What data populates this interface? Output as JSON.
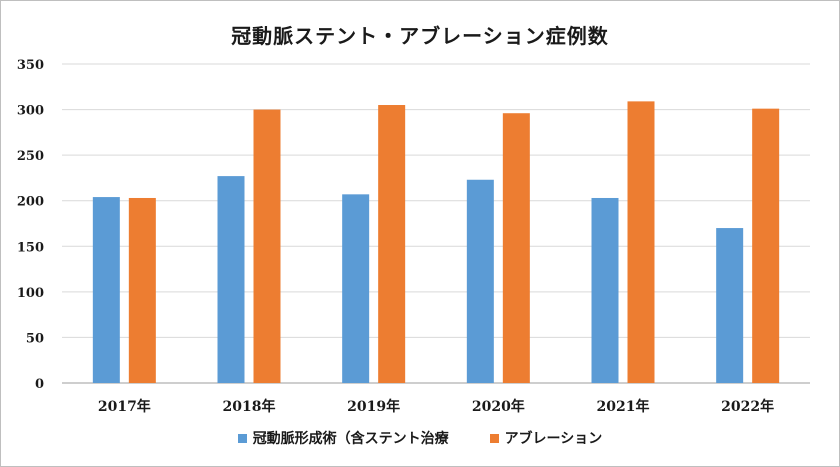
{
  "chart_data": {
    "type": "bar",
    "title": "冠動脈ステント・アブレーション症例数",
    "categories": [
      "2017年",
      "2018年",
      "2019年",
      "2020年",
      "2021年",
      "2022年"
    ],
    "series": [
      {
        "name": "冠動脈形成術（含ステント治療",
        "color": "#5b9bd5",
        "values": [
          204,
          227,
          207,
          223,
          203,
          170
        ]
      },
      {
        "name": "アブレーション",
        "color": "#ed7d31",
        "values": [
          203,
          300,
          305,
          296,
          309,
          301
        ]
      }
    ],
    "ylim": [
      0,
      350
    ],
    "yticks": [
      0,
      50,
      100,
      150,
      200,
      250,
      300,
      350
    ],
    "grid": true,
    "legend_position": "bottom"
  }
}
